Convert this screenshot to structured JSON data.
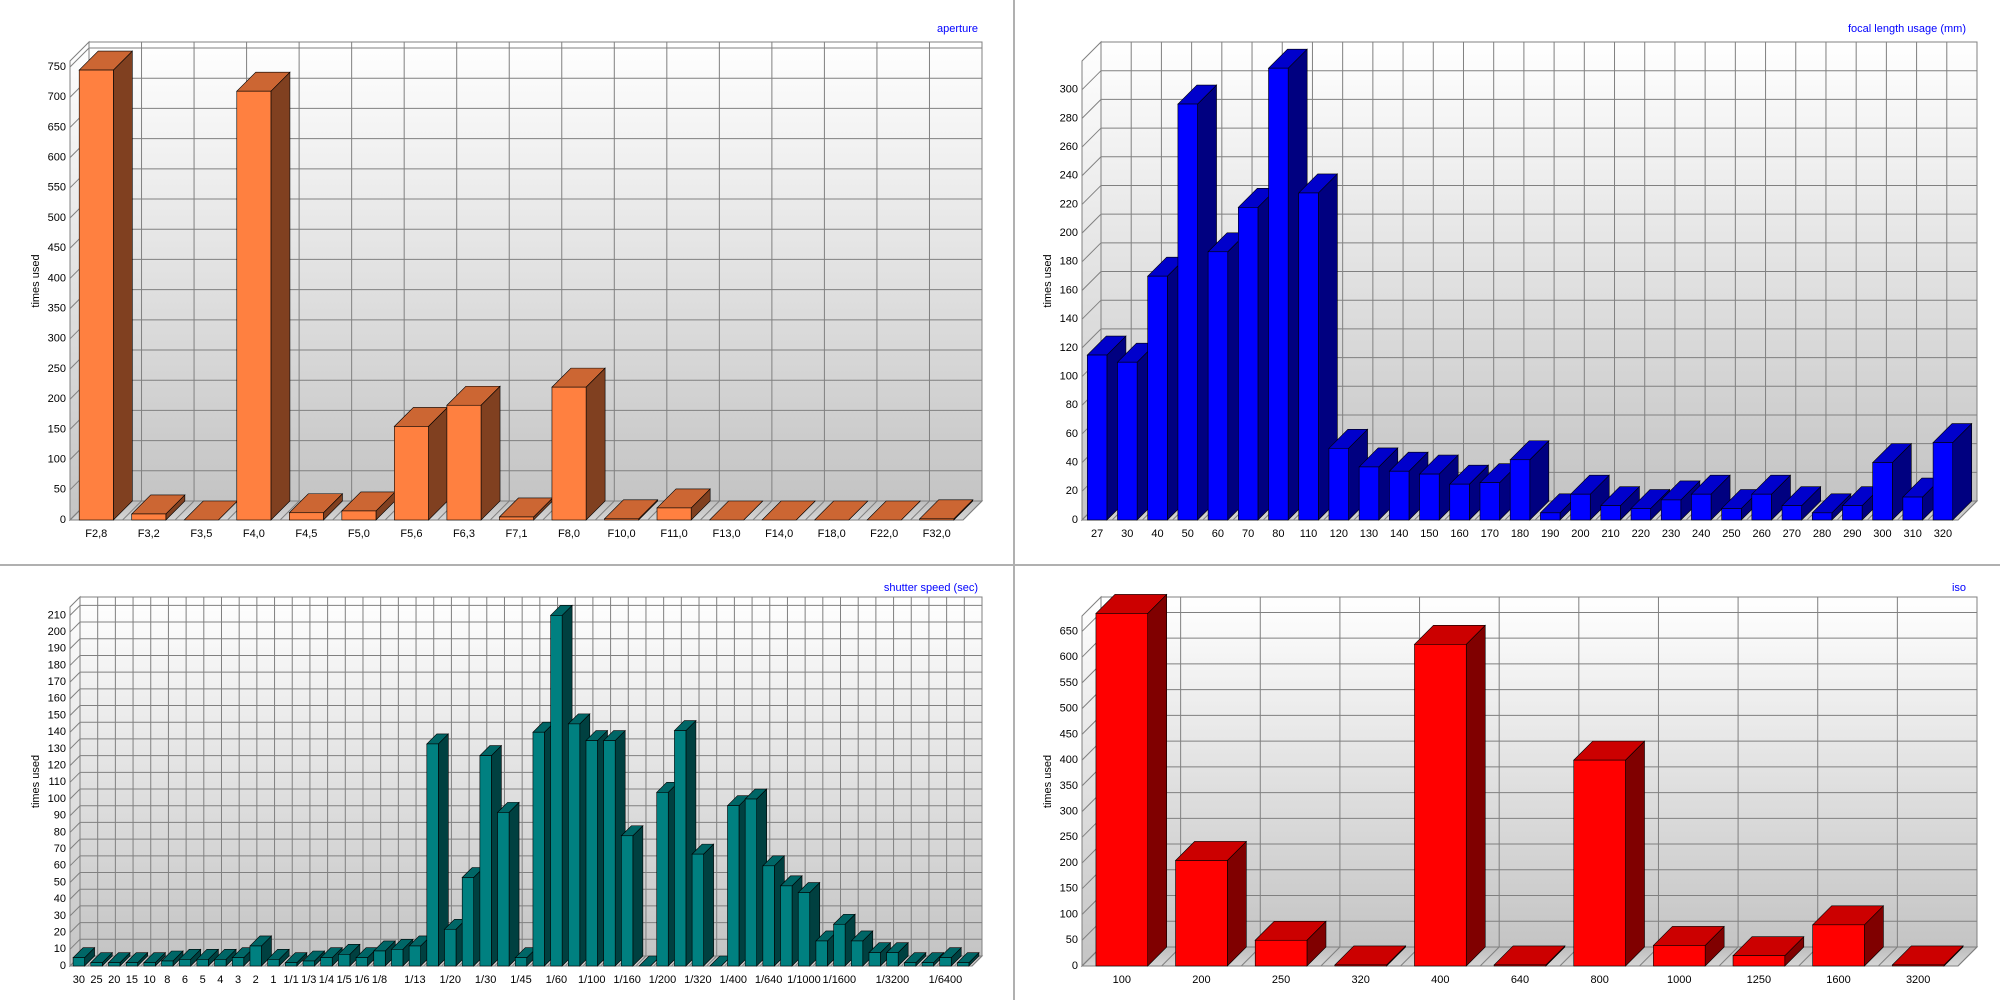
{
  "chart_data": [
    {
      "type": "bar3d",
      "title": "aperture",
      "ylabel": "times used",
      "color": "#ff8040",
      "categories": [
        "F2,8",
        "F3,2",
        "F3,5",
        "F4,0",
        "F4,5",
        "F5,0",
        "F5,6",
        "F6,3",
        "F7,1",
        "F8,0",
        "F10,0",
        "F11,0",
        "F13,0",
        "F14,0",
        "F18,0",
        "F22,0",
        "F32,0"
      ],
      "values": [
        745,
        10,
        0,
        710,
        12,
        15,
        155,
        190,
        5,
        220,
        2,
        20,
        0,
        0,
        0,
        0,
        2
      ],
      "ylim": [
        0,
        760
      ],
      "yticks": [
        0,
        50,
        100,
        150,
        200,
        250,
        300,
        350,
        400,
        450,
        500,
        550,
        600,
        650,
        700,
        750
      ],
      "grid": true
    },
    {
      "type": "bar3d",
      "title": "focal length usage (mm)",
      "ylabel": "times used",
      "color": "#0000ff",
      "categories": [
        "27",
        "30",
        "40",
        "50",
        "60",
        "70",
        "80",
        "110",
        "120",
        "130",
        "140",
        "150",
        "160",
        "170",
        "180",
        "190",
        "200",
        "210",
        "220",
        "230",
        "240",
        "250",
        "260",
        "270",
        "280",
        "290",
        "300",
        "310",
        "320"
      ],
      "values": [
        115,
        110,
        170,
        290,
        187,
        218,
        315,
        228,
        50,
        37,
        34,
        32,
        25,
        26,
        42,
        5,
        18,
        10,
        8,
        14,
        18,
        8,
        18,
        10,
        5,
        10,
        40,
        16,
        54
      ],
      "ylim": [
        0,
        320
      ],
      "yticks": [
        0,
        20,
        40,
        60,
        80,
        100,
        120,
        140,
        160,
        180,
        200,
        220,
        240,
        260,
        280,
        300
      ],
      "grid": true
    },
    {
      "type": "bar3d",
      "title": "shutter speed (sec)",
      "ylabel": "times used",
      "color": "#008080",
      "categories": [
        "30",
        "25",
        "20",
        "15",
        "10",
        "8",
        "6",
        "5",
        "4",
        "3",
        "2",
        "1",
        "1/1",
        "1/3",
        "1/4",
        "1/5",
        "1/6",
        "1/8",
        null,
        "1/13",
        null,
        "1/20",
        null,
        "1/30",
        null,
        "1/45",
        null,
        "1/60",
        null,
        "1/100",
        null,
        "1/160",
        null,
        "1/200",
        null,
        "1/320",
        null,
        "1/400",
        null,
        "1/640",
        null,
        "1/1000",
        null,
        "1/1600",
        null,
        null,
        "1/3200",
        null,
        null,
        "1/6400",
        null
      ],
      "values": [
        5,
        2,
        2,
        2,
        2,
        3,
        4,
        4,
        4,
        5,
        12,
        4,
        2,
        3,
        5,
        7,
        5,
        9,
        10,
        12,
        133,
        22,
        53,
        126,
        92,
        5,
        140,
        210,
        145,
        135,
        135,
        78,
        0,
        104,
        141,
        67,
        0,
        96,
        100,
        60,
        48,
        44,
        15,
        25,
        15,
        8,
        8,
        2,
        2,
        5,
        2
      ],
      "ylim": [
        0,
        215
      ],
      "yticks": [
        0,
        10,
        20,
        30,
        40,
        50,
        60,
        70,
        80,
        90,
        100,
        110,
        120,
        130,
        140,
        150,
        160,
        170,
        180,
        190,
        200,
        210
      ],
      "grid": true
    },
    {
      "type": "bar3d",
      "title": "iso",
      "ylabel": "times used",
      "color": "#ff0000",
      "categories": [
        "100",
        "200",
        "250",
        "320",
        "400",
        "640",
        "800",
        "1000",
        "1250",
        "1600",
        "3200"
      ],
      "values": [
        685,
        205,
        50,
        2,
        625,
        2,
        400,
        40,
        20,
        80,
        2
      ],
      "ylim": [
        0,
        680
      ],
      "yticks": [
        0,
        50,
        100,
        150,
        200,
        250,
        300,
        350,
        400,
        450,
        500,
        550,
        600,
        650
      ],
      "grid": true
    }
  ]
}
